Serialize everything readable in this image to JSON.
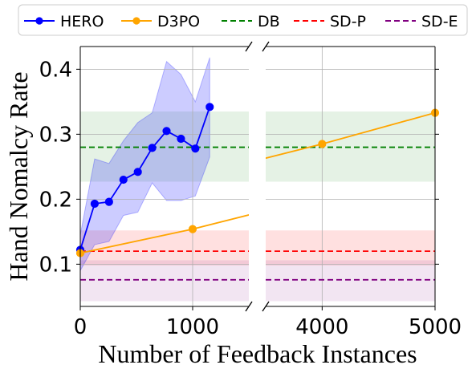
{
  "chart_data": {
    "type": "line",
    "xlabel": "Number of Feedback Instances",
    "ylabel": "Hand Nomalcy Rate",
    "broken_x_axis": true,
    "x_segments": [
      [
        0,
        1500
      ],
      [
        3500,
        5000
      ]
    ],
    "xticks": [
      0,
      1000,
      4000,
      5000
    ],
    "xtick_labels": [
      "0",
      "1000",
      "4000",
      "5000"
    ],
    "ylim": [
      0.035,
      0.435
    ],
    "yticks": [
      0.1,
      0.2,
      0.3,
      0.4
    ],
    "ytick_labels": [
      "0.1",
      "0.2",
      "0.3",
      "0.4"
    ],
    "grid": true,
    "legend_position": "top",
    "series": [
      {
        "name": "HERO",
        "color": "#0000ff",
        "marker": "circle",
        "linestyle": "solid",
        "x": [
          0,
          128,
          256,
          384,
          512,
          640,
          768,
          896,
          1024,
          1152
        ],
        "y": [
          0.122,
          0.193,
          0.196,
          0.23,
          0.242,
          0.279,
          0.305,
          0.293,
          0.278,
          0.342
        ],
        "band_lower": [
          0.09,
          0.13,
          0.135,
          0.175,
          0.18,
          0.225,
          0.198,
          0.198,
          0.205,
          0.265
        ],
        "band_upper": [
          0.145,
          0.262,
          0.255,
          0.29,
          0.318,
          0.333,
          0.412,
          0.392,
          0.35,
          0.418
        ]
      },
      {
        "name": "D3PO",
        "color": "#ffa500",
        "marker": "circle",
        "linestyle": "solid",
        "x": [
          0,
          1000,
          4000,
          5000
        ],
        "y": [
          0.117,
          0.154,
          0.285,
          0.333
        ]
      },
      {
        "name": "DB",
        "color": "#008000",
        "linestyle": "dashed",
        "value": 0.28,
        "band": [
          0.227,
          0.335
        ]
      },
      {
        "name": "SD-P",
        "color": "#ff0000",
        "linestyle": "dashed",
        "value": 0.12,
        "band": [
          0.098,
          0.152
        ]
      },
      {
        "name": "SD-E",
        "color": "#800080",
        "linestyle": "dashed",
        "value": 0.076,
        "band": [
          0.043,
          0.106
        ]
      }
    ]
  }
}
